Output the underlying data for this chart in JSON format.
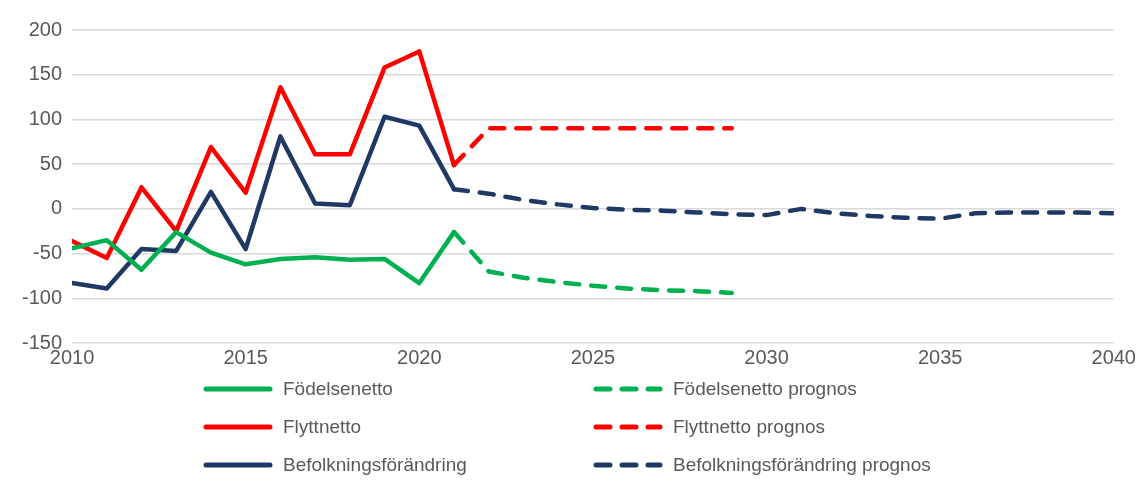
{
  "chart_data": {
    "type": "line",
    "xlim": [
      2010,
      2040
    ],
    "xticks": [
      2010,
      2015,
      2020,
      2025,
      2030,
      2035,
      2040
    ],
    "ylim": [
      -150,
      200
    ],
    "yticks": [
      -150,
      -100,
      -50,
      0,
      50,
      100,
      150,
      200
    ],
    "grid": "y",
    "legend": "bottom",
    "marker": "none",
    "series": [
      {
        "name": "Födelsenetto",
        "color": "#00b050",
        "line_style": "solid",
        "x": [
          2010,
          2011,
          2012,
          2013,
          2014,
          2015,
          2016,
          2017,
          2018,
          2019,
          2020,
          2021
        ],
        "values": [
          -44,
          -35,
          -68,
          -26,
          -49,
          -62,
          -56,
          -54,
          -57,
          -56,
          -83,
          -26
        ]
      },
      {
        "name": "Födelsenetto prognos",
        "color": "#00b050",
        "line_style": "dashed",
        "x": [
          2021,
          2022,
          2023,
          2024,
          2025,
          2026,
          2027,
          2028,
          2029
        ],
        "values": [
          -26,
          -70,
          -77,
          -82,
          -86,
          -89,
          -91,
          -92,
          -94
        ]
      },
      {
        "name": "Flyttnetto",
        "color": "#ff0000",
        "line_style": "solid",
        "x": [
          2010,
          2011,
          2012,
          2013,
          2014,
          2015,
          2016,
          2017,
          2018,
          2019,
          2020,
          2021
        ],
        "values": [
          -36,
          -55,
          24,
          -25,
          69,
          18,
          136,
          61,
          61,
          158,
          176,
          49
        ]
      },
      {
        "name": "Flyttnetto prognos",
        "color": "#ff0000",
        "line_style": "dashed",
        "x": [
          2021,
          2022,
          2023,
          2024,
          2025,
          2026,
          2027,
          2028,
          2029
        ],
        "values": [
          49,
          90,
          90,
          90,
          90,
          90,
          90,
          90,
          90
        ]
      },
      {
        "name": "Befolkningsförändring",
        "color": "#1f3864",
        "line_style": "solid",
        "x": [
          2010,
          2011,
          2012,
          2013,
          2014,
          2015,
          2016,
          2017,
          2018,
          2019,
          2020,
          2021
        ],
        "values": [
          -83,
          -89,
          -45,
          -47,
          19,
          -45,
          81,
          6,
          4,
          103,
          93,
          22
        ]
      },
      {
        "name": "Befolkningsförändring prognos",
        "color": "#1f3864",
        "line_style": "dashed",
        "x": [
          2021,
          2022,
          2023,
          2024,
          2025,
          2026,
          2027,
          2028,
          2029,
          2030,
          2031,
          2032,
          2033,
          2034,
          2035,
          2036,
          2037,
          2038,
          2039,
          2040
        ],
        "values": [
          22,
          17,
          10,
          5,
          1,
          -1,
          -2,
          -4,
          -6,
          -7,
          0,
          -5,
          -8,
          -10,
          -11,
          -5,
          -4,
          -4,
          -4,
          -5
        ]
      }
    ]
  }
}
